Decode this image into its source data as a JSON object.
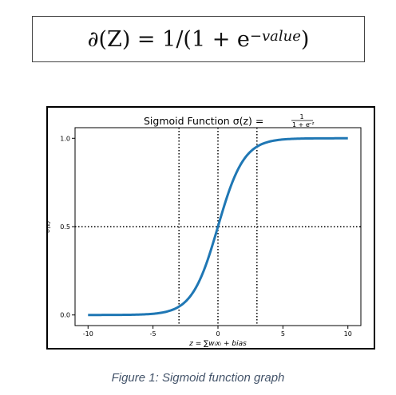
{
  "formula": {
    "lhs": "∂(Z) = 1/(1 + e",
    "exponent": "−value",
    "close": ")"
  },
  "chart_data": {
    "type": "line",
    "title": "Sigmoid Function σ(z) = 1/(1+e^−z)",
    "title_prefix": "Sigmoid Function σ(z) =",
    "title_num": "1",
    "title_den": "1 + e",
    "title_den_exp": "−z",
    "xlabel": "z = ∑wᵢxᵢ + bias",
    "ylabel": "σ(z)",
    "xlim": [
      -11,
      11
    ],
    "ylim": [
      -0.06,
      1.06
    ],
    "xticks": [
      -10,
      -5,
      0,
      5,
      10
    ],
    "xtick_labels": [
      "-10",
      "-5",
      "0",
      "5",
      "10"
    ],
    "yticks": [
      0.0,
      0.5,
      1.0
    ],
    "ytick_labels": [
      "0.0",
      "0.5",
      "1.0"
    ],
    "vlines": [
      -3,
      0,
      3
    ],
    "hlines": [
      0.5
    ],
    "series": [
      {
        "function": "sigmoid",
        "x_range": [
          -10,
          10
        ],
        "color": "#1f77b4"
      }
    ]
  },
  "caption": "Figure 1: Sigmoid function graph"
}
